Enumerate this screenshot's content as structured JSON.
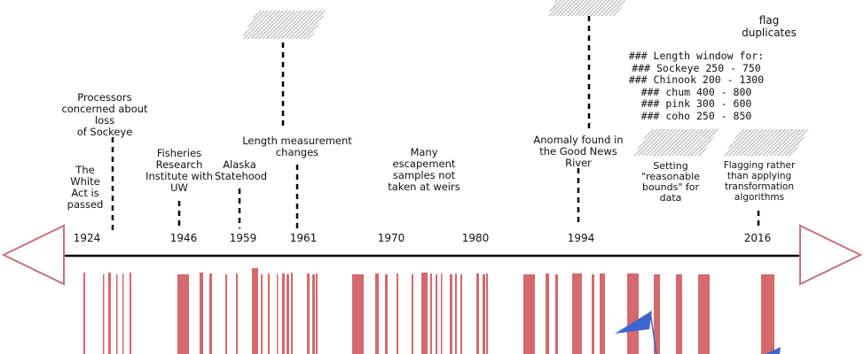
{
  "years": [
    "1924",
    "1946",
    "1959",
    "1961",
    "1970",
    "1980",
    "1994",
    "2016"
  ],
  "events": {
    "white_act": "The\nWhite\nAct is\npassed",
    "processors": "Processors\nconcerned about loss\nof Sockeye",
    "fisheries_institute": "Fisheries\nResearch\nInstitute with\nUW",
    "alaska_statehood": "Alaska\nStatehood",
    "length_measurement": "Length measurement\nchanges",
    "escapement": "Many\nescapement\nsamples not\ntaken at weirs",
    "anomaly": "Anomaly found in\nthe Good News\nRiver",
    "reasonable_bounds": "Setting\n\"reasonable\nbounds\" for data",
    "flagging": "Flagging rather\nthan applying\ntransformation\nalgorithms",
    "flag_duplicates": "flag\nduplicates"
  },
  "length_window": [
    "### Length window for:",
    "### Sockeye 250 - 750",
    "### Chinook 200 - 1300",
    "### chum 400 - 800",
    "### pink 300 - 600",
    "### coho 250 - 850"
  ],
  "colors": {
    "bars": "#d4696e",
    "arrow_outline": "#c8707c",
    "flag": "#3f66cc",
    "axis": "#000000"
  }
}
